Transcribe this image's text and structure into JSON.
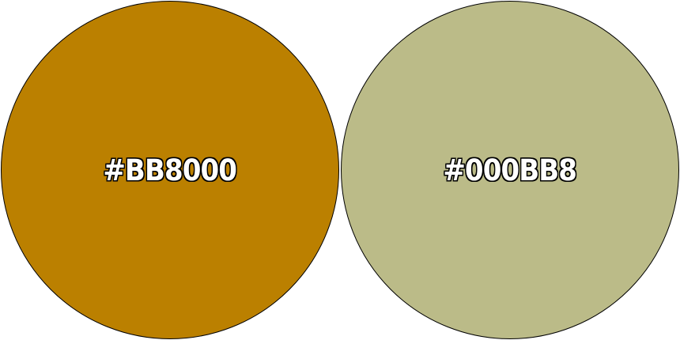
{
  "swatches": [
    {
      "label": "#BB8000",
      "fill": "#BB8000"
    },
    {
      "label": "#000BB8",
      "fill": "#BBBB88"
    }
  ]
}
